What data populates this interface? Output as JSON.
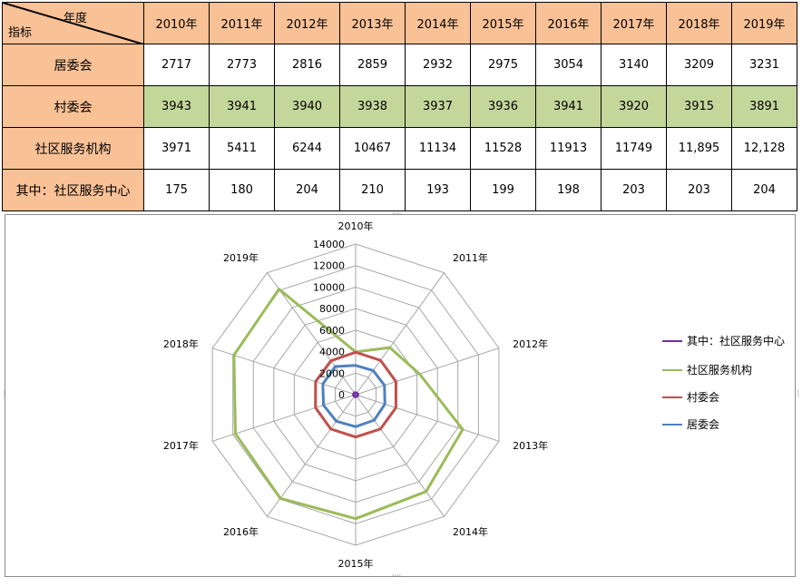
{
  "table": {
    "corner_top": "年度",
    "corner_bottom": "指标",
    "years": [
      "2010年",
      "2011年",
      "2012年",
      "2013年",
      "2014年",
      "2015年",
      "2016年",
      "2017年",
      "2018年",
      "2019年"
    ],
    "rows": [
      {
        "label": "居委会",
        "values": [
          "2717",
          "2773",
          "2816",
          "2859",
          "2932",
          "2975",
          "3054",
          "3140",
          "3209",
          "3231"
        ]
      },
      {
        "label": "村委会",
        "values": [
          "3943",
          "3941",
          "3940",
          "3938",
          "3937",
          "3936",
          "3941",
          "3920",
          "3915",
          "3891"
        ]
      },
      {
        "label": "社区服务机构",
        "values": [
          "3971",
          "5411",
          "6244",
          "10467",
          "11134",
          "11528",
          "11913",
          "11749",
          "11,895",
          "12,128"
        ]
      },
      {
        "label": "其中：社区服务中心",
        "values": [
          "175",
          "180",
          "204",
          "210",
          "193",
          "199",
          "198",
          "203",
          "203",
          "204"
        ]
      }
    ]
  },
  "chart_data": {
    "type": "radar",
    "categories": [
      "2010年",
      "2011年",
      "2012年",
      "2013年",
      "2014年",
      "2015年",
      "2016年",
      "2017年",
      "2018年",
      "2019年"
    ],
    "r_ticks": [
      0,
      2000,
      4000,
      6000,
      8000,
      10000,
      12000,
      14000
    ],
    "rlim": [
      0,
      14000
    ],
    "legend_position": "right",
    "series": [
      {
        "name": "其中：社区服务中心",
        "color": "#7030a0",
        "values": [
          175,
          180,
          204,
          210,
          193,
          199,
          198,
          203,
          203,
          204
        ]
      },
      {
        "name": "社区服务机构",
        "color": "#9bbb59",
        "values": [
          3971,
          5411,
          6244,
          10467,
          11134,
          11528,
          11913,
          11749,
          11895,
          12128
        ]
      },
      {
        "name": "村委会",
        "color": "#c0504d",
        "values": [
          3943,
          3941,
          3940,
          3938,
          3937,
          3936,
          3941,
          3920,
          3915,
          3891
        ]
      },
      {
        "name": "居委会",
        "color": "#4f81bd",
        "values": [
          2717,
          2773,
          2816,
          2859,
          2932,
          2975,
          3054,
          3140,
          3209,
          3231
        ]
      }
    ]
  }
}
